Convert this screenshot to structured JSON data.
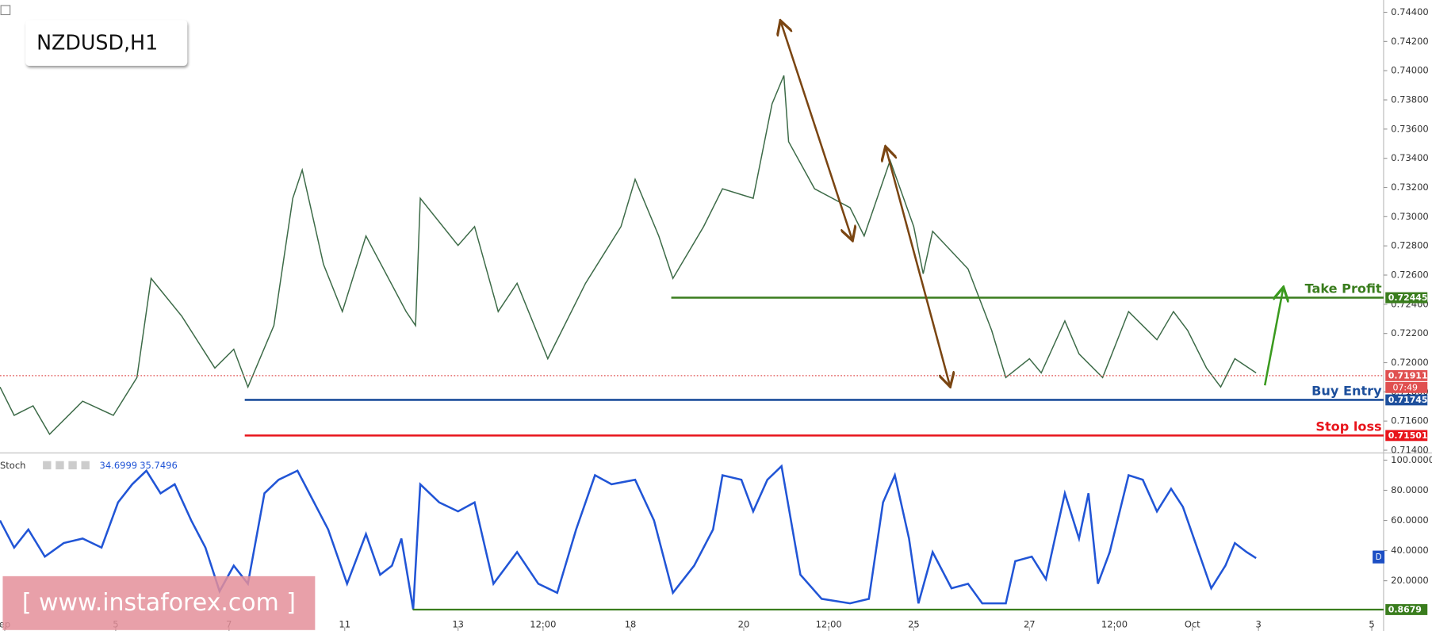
{
  "chart_data": [
    {
      "type": "line",
      "title": "NZDUSD,H1",
      "x": [
        0,
        6,
        14,
        21,
        35,
        48,
        58,
        64,
        77,
        91,
        99,
        105,
        116,
        124,
        128,
        137,
        145,
        155,
        172,
        176,
        178,
        194,
        201,
        211,
        219,
        232,
        248,
        263,
        269,
        279,
        285,
        298,
        306,
        319,
        327,
        332,
        334,
        345,
        360,
        366,
        377,
        387,
        391,
        395,
        410,
        420,
        426,
        436,
        441,
        451,
        457,
        467,
        478,
        490,
        497,
        503,
        511,
        517,
        523,
        532
      ],
      "xlim": [
        0,
        586
      ],
      "xticks": [
        {
          "value": 2,
          "label": "ep"
        },
        {
          "value": 49,
          "label": "5"
        },
        {
          "value": 97,
          "label": "7"
        },
        {
          "value": 146,
          "label": "11"
        },
        {
          "value": 194,
          "label": "13"
        },
        {
          "value": 230,
          "label": "12:00"
        },
        {
          "value": 267,
          "label": "18"
        },
        {
          "value": 315,
          "label": "20"
        },
        {
          "value": 351,
          "label": "12:00"
        },
        {
          "value": 387,
          "label": "25"
        },
        {
          "value": 436,
          "label": "27"
        },
        {
          "value": 472,
          "label": "12:00"
        },
        {
          "value": 505,
          "label": "Oct"
        },
        {
          "value": 533,
          "label": "3"
        },
        {
          "value": 581,
          "label": "5"
        }
      ],
      "ylim": [
        0.71388,
        0.74484
      ],
      "yticks": [
        {
          "value": 0.714,
          "label": "0.71400"
        },
        {
          "value": 0.716,
          "label": "0.71600"
        },
        {
          "value": 0.718,
          "label": "0.71800"
        },
        {
          "value": 0.72,
          "label": "0.72000"
        },
        {
          "value": 0.722,
          "label": "0.72200"
        },
        {
          "value": 0.724,
          "label": "0.72400"
        },
        {
          "value": 0.726,
          "label": "0.72600"
        },
        {
          "value": 0.728,
          "label": "0.72800"
        },
        {
          "value": 0.73,
          "label": "0.73000"
        },
        {
          "value": 0.732,
          "label": "0.73200"
        },
        {
          "value": 0.734,
          "label": "0.73400"
        },
        {
          "value": 0.736,
          "label": "0.73600"
        },
        {
          "value": 0.738,
          "label": "0.73800"
        },
        {
          "value": 0.74,
          "label": "0.74000"
        },
        {
          "value": 0.742,
          "label": "0.74200"
        },
        {
          "value": 0.744,
          "label": "0.74400"
        }
      ],
      "series": [
        {
          "color": "#3d6b48",
          "values": [
            0.71833,
            0.71639,
            0.71704,
            0.7151,
            0.71736,
            0.71639,
            0.71898,
            0.72577,
            0.72318,
            0.71963,
            0.72092,
            0.71833,
            0.72254,
            0.73126,
            0.7332,
            0.72674,
            0.7235,
            0.72868,
            0.7235,
            0.72254,
            0.73126,
            0.72803,
            0.72932,
            0.7235,
            0.72544,
            0.72027,
            0.72544,
            0.72932,
            0.73256,
            0.72868,
            0.72577,
            0.72932,
            0.73191,
            0.73126,
            0.73773,
            0.73967,
            0.73514,
            0.73191,
            0.73062,
            0.72868,
            0.73385,
            0.72932,
            0.72609,
            0.729,
            0.72642,
            0.72221,
            0.71898,
            0.72027,
            0.7193,
            0.72286,
            0.7206,
            0.71898,
            0.7235,
            0.72157,
            0.7235,
            0.72221,
            0.71963,
            0.71833,
            0.72027,
            0.7193
          ]
        }
      ],
      "levels": [
        {
          "name": "Take Profit",
          "value": 0.72445,
          "label": "0.72445",
          "color": "#3a7d1e"
        },
        {
          "name": "Buy Entry",
          "value": 0.71745,
          "label": "0.71745",
          "color": "#1d4f9c"
        },
        {
          "name": "Stop loss",
          "value": 0.71501,
          "label": "0.71501",
          "color": "#e8141b"
        }
      ],
      "current_price": {
        "value": 0.71911,
        "label": "0.71911",
        "countdown": "07:49",
        "color": "#e05050"
      }
    },
    {
      "type": "line",
      "name": "Stoch",
      "readouts": [
        "34.6999",
        "35.7496"
      ],
      "marker": "D",
      "x": [
        0,
        6,
        12,
        19,
        27,
        35,
        43,
        50,
        56,
        62,
        68,
        74,
        81,
        87,
        93,
        99,
        105,
        112,
        118,
        126,
        132,
        139,
        147,
        155,
        161,
        166,
        170,
        175,
        178,
        186,
        194,
        201,
        209,
        219,
        228,
        236,
        244,
        252,
        259,
        269,
        277,
        285,
        294,
        302,
        306,
        314,
        319,
        325,
        331,
        339,
        348,
        360,
        368,
        374,
        379,
        385,
        389,
        395,
        403,
        410,
        416,
        426,
        430,
        437,
        443,
        451,
        457,
        461,
        465,
        470,
        478,
        484,
        490,
        496,
        501,
        507,
        513,
        519,
        523,
        528,
        532
      ],
      "xlim": [
        0,
        586
      ],
      "ylim": [
        -12.7,
        104.2
      ],
      "yticks": [
        {
          "value": 20,
          "label": "20.0000"
        },
        {
          "value": 40,
          "label": "40.0000"
        },
        {
          "value": 60,
          "label": "60.0000"
        },
        {
          "value": 80,
          "label": "80.0000"
        },
        {
          "value": 100,
          "label": "100.0000"
        }
      ],
      "series": [
        {
          "color": "#2155d6",
          "values": [
            60,
            42,
            54,
            36,
            45,
            48,
            42,
            72,
            84,
            93,
            78,
            84,
            60,
            42,
            13,
            30,
            18,
            78,
            87,
            93,
            75,
            54,
            18,
            51,
            24,
            30,
            48,
            1,
            84,
            72,
            66,
            72,
            18,
            39,
            18,
            12,
            54,
            90,
            84,
            87,
            60,
            12,
            30,
            54,
            90,
            87,
            66,
            87,
            96,
            24,
            8,
            5,
            8,
            72,
            90,
            48,
            5,
            39,
            15,
            18,
            5,
            5,
            33,
            36,
            21,
            78,
            48,
            78,
            18,
            39,
            90,
            87,
            66,
            81,
            69,
            42,
            15,
            30,
            45,
            39,
            35
          ]
        }
      ],
      "level": {
        "value": 0.8679,
        "label": "0.8679",
        "color": "#3a7d1e"
      }
    }
  ],
  "watermark": "[ www.instaforex.com ]"
}
